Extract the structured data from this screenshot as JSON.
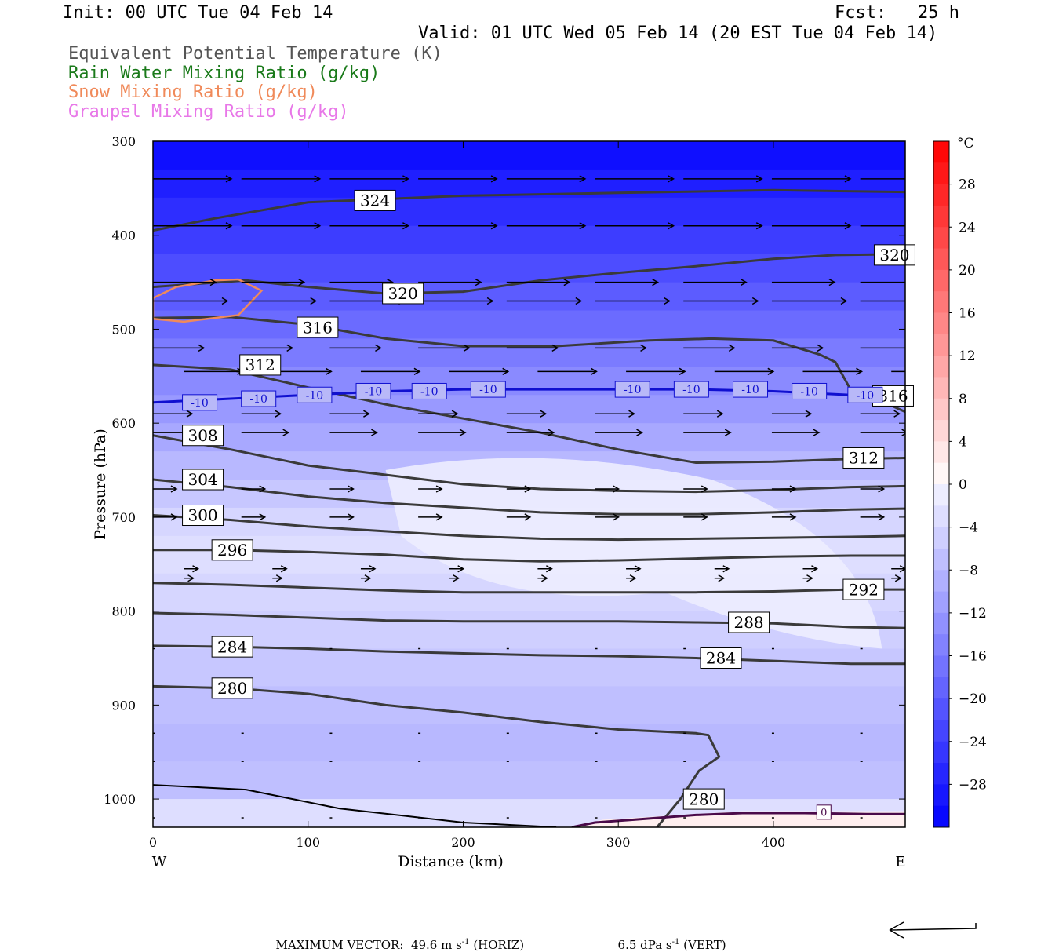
{
  "header": {
    "init": "Init: 00 UTC Tue 04 Feb 14",
    "fcst": "Fcst:   25 h",
    "valid": "Valid: 01 UTC Wed 05 Feb 14 (20 EST Tue 04 Feb 14)",
    "legend": [
      {
        "text": "Equivalent Potential Temperature (K)",
        "color": "#555555"
      },
      {
        "text": "Rain Water Mixing Ratio (g/kg)",
        "color": "#1a7a1a"
      },
      {
        "text": "Snow Mixing Ratio (g/kg)",
        "color": "#f08a5a"
      },
      {
        "text": "Graupel Mixing Ratio (g/kg)",
        "color": "#e878e8"
      }
    ]
  },
  "footer": {
    "max_vector_label": "MAXIMUM VECTOR:",
    "horiz": "49.6 m s",
    "horiz_unit": "(HORIZ)",
    "vert": "6.5 dPa s",
    "vert_unit": "(VERT)",
    "exp": "-1"
  },
  "chart_data": {
    "type": "contour",
    "xlabel": "Distance (km)",
    "ylabel": "Pressure (hPa)",
    "xlim": [
      0,
      485
    ],
    "ylim": [
      1030,
      300
    ],
    "x_ticks": [
      0,
      100,
      200,
      300,
      400
    ],
    "y_ticks": [
      300,
      400,
      500,
      600,
      700,
      800,
      900,
      1000
    ],
    "x_end_labels": {
      "left": "W",
      "right": "E"
    },
    "colorbar": {
      "unit": "°C",
      "ticks": [
        28,
        24,
        20,
        16,
        12,
        8,
        4,
        0,
        -4,
        -8,
        -12,
        -16,
        -20,
        -24,
        -28
      ],
      "range": [
        -32,
        32
      ]
    },
    "theta_e_contours": [
      {
        "label": "324",
        "points": [
          [
            0,
            395
          ],
          [
            40,
            382
          ],
          [
            100,
            365
          ],
          [
            200,
            358
          ],
          [
            300,
            355
          ],
          [
            400,
            352
          ],
          [
            485,
            354
          ]
        ],
        "label_at": [
          130,
          363
        ]
      },
      {
        "label": "320",
        "points": [
          [
            0,
            455
          ],
          [
            60,
            448
          ],
          [
            100,
            455
          ],
          [
            150,
            462
          ],
          [
            200,
            460
          ],
          [
            250,
            448
          ],
          [
            300,
            440
          ],
          [
            350,
            433
          ],
          [
            400,
            425
          ],
          [
            440,
            421
          ],
          [
            485,
            420
          ]
        ],
        "label_at": [
          148,
          462
        ]
      },
      {
        "label": "320",
        "points": [],
        "label_at": [
          465,
          421
        ]
      },
      {
        "label": "316",
        "points": [
          [
            0,
            488
          ],
          [
            50,
            487
          ],
          [
            100,
            495
          ],
          [
            150,
            510
          ],
          [
            200,
            518
          ],
          [
            260,
            518
          ],
          [
            320,
            512
          ],
          [
            360,
            510
          ],
          [
            400,
            512
          ],
          [
            430,
            527
          ],
          [
            440,
            535
          ],
          [
            450,
            565
          ],
          [
            465,
            573
          ],
          [
            485,
            588
          ]
        ],
        "label_at": [
          93,
          498
        ]
      },
      {
        "label": "316",
        "points": [],
        "label_at": [
          464,
          571
        ]
      },
      {
        "label": "312",
        "points": [
          [
            0,
            538
          ],
          [
            50,
            543
          ],
          [
            100,
            562
          ],
          [
            150,
            580
          ],
          [
            200,
            595
          ],
          [
            250,
            610
          ],
          [
            300,
            628
          ],
          [
            350,
            642
          ],
          [
            400,
            641
          ],
          [
            450,
            638
          ],
          [
            485,
            637
          ]
        ],
        "label_at": [
          56,
          538
        ]
      },
      {
        "label": "312",
        "points": [],
        "label_at": [
          445,
          637
        ]
      },
      {
        "label": "308",
        "points": [
          [
            0,
            613
          ],
          [
            50,
            628
          ],
          [
            100,
            645
          ],
          [
            150,
            655
          ],
          [
            200,
            665
          ],
          [
            250,
            670
          ],
          [
            300,
            672
          ],
          [
            350,
            673
          ],
          [
            400,
            671
          ],
          [
            450,
            668
          ],
          [
            485,
            667
          ]
        ],
        "label_at": [
          19,
          613
        ]
      },
      {
        "label": "304",
        "points": [
          [
            0,
            660
          ],
          [
            50,
            668
          ],
          [
            100,
            678
          ],
          [
            150,
            685
          ],
          [
            200,
            690
          ],
          [
            250,
            695
          ],
          [
            300,
            697
          ],
          [
            350,
            697
          ],
          [
            400,
            695
          ],
          [
            450,
            692
          ],
          [
            485,
            691
          ]
        ],
        "label_at": [
          19,
          660
        ]
      },
      {
        "label": "300",
        "points": [
          [
            0,
            698
          ],
          [
            50,
            703
          ],
          [
            100,
            710
          ],
          [
            150,
            715
          ],
          [
            200,
            720
          ],
          [
            250,
            723
          ],
          [
            300,
            724
          ],
          [
            350,
            723
          ],
          [
            400,
            722
          ],
          [
            450,
            721
          ],
          [
            485,
            720
          ]
        ],
        "label_at": [
          19,
          698
        ]
      },
      {
        "label": "296",
        "points": [
          [
            0,
            735
          ],
          [
            50,
            735
          ],
          [
            100,
            737
          ],
          [
            150,
            740
          ],
          [
            200,
            745
          ],
          [
            250,
            747
          ],
          [
            300,
            746
          ],
          [
            350,
            744
          ],
          [
            400,
            742
          ],
          [
            450,
            741
          ],
          [
            485,
            741
          ]
        ],
        "label_at": [
          38,
          735
        ]
      },
      {
        "label": "292",
        "points": [
          [
            0,
            770
          ],
          [
            50,
            772
          ],
          [
            100,
            775
          ],
          [
            150,
            778
          ],
          [
            200,
            780
          ],
          [
            250,
            780
          ],
          [
            300,
            780
          ],
          [
            350,
            780
          ],
          [
            400,
            779
          ],
          [
            450,
            777
          ],
          [
            485,
            777
          ]
        ],
        "label_at": [
          445,
          777
        ]
      },
      {
        "label": "288",
        "points": [
          [
            0,
            802
          ],
          [
            50,
            804
          ],
          [
            100,
            807
          ],
          [
            150,
            810
          ],
          [
            200,
            811
          ],
          [
            250,
            811
          ],
          [
            300,
            811
          ],
          [
            350,
            812
          ],
          [
            400,
            813
          ],
          [
            450,
            817
          ],
          [
            485,
            818
          ]
        ],
        "label_at": [
          371,
          812
        ]
      },
      {
        "label": "284",
        "points": [
          [
            0,
            837
          ],
          [
            50,
            838
          ],
          [
            100,
            840
          ],
          [
            150,
            843
          ],
          [
            200,
            845
          ],
          [
            250,
            847
          ],
          [
            300,
            848
          ],
          [
            350,
            850
          ],
          [
            400,
            853
          ],
          [
            450,
            856
          ],
          [
            485,
            856
          ]
        ],
        "label_at": [
          353,
          850
        ]
      },
      {
        "label": "284",
        "points": [],
        "label_at": [
          38,
          838
        ]
      },
      {
        "label": "280",
        "points": [
          [
            0,
            880
          ],
          [
            50,
            882
          ],
          [
            100,
            888
          ],
          [
            150,
            900
          ],
          [
            200,
            908
          ],
          [
            250,
            918
          ],
          [
            300,
            926
          ],
          [
            350,
            930
          ],
          [
            358,
            932
          ],
          [
            365,
            955
          ],
          [
            352,
            970
          ],
          [
            340,
            1000
          ],
          [
            330,
            1020
          ],
          [
            325,
            1030
          ]
        ],
        "label_at": [
          38,
          882
        ]
      },
      {
        "label": "280",
        "points": [],
        "label_at": [
          342,
          1000
        ]
      }
    ],
    "rain_contour_0": {
      "label": "0",
      "points": [
        [
          270,
          1030
        ],
        [
          285,
          1025
        ],
        [
          310,
          1022
        ],
        [
          350,
          1017
        ],
        [
          380,
          1015
        ],
        [
          420,
          1015
        ],
        [
          460,
          1016
        ],
        [
          485,
          1016
        ]
      ],
      "label_at": [
        428,
        1014
      ]
    },
    "freezing_isotherm": {
      "label": "-10",
      "points": [
        [
          0,
          578
        ],
        [
          50,
          574
        ],
        [
          100,
          570
        ],
        [
          150,
          566
        ],
        [
          200,
          564
        ],
        [
          250,
          564
        ],
        [
          300,
          564
        ],
        [
          350,
          564
        ],
        [
          400,
          566
        ],
        [
          450,
          570
        ],
        [
          485,
          572
        ]
      ],
      "label_positions": [
        19,
        57,
        93,
        131,
        167,
        205,
        298,
        336,
        374,
        412,
        448
      ]
    },
    "surface_boundary": {
      "points": [
        [
          0,
          985
        ],
        [
          60,
          990
        ],
        [
          120,
          1010
        ],
        [
          200,
          1025
        ],
        [
          260,
          1030
        ]
      ]
    },
    "snow_region": {
      "points": [
        [
          0,
          467
        ],
        [
          15,
          455
        ],
        [
          40,
          448
        ],
        [
          55,
          447
        ],
        [
          70,
          459
        ],
        [
          55,
          485
        ],
        [
          20,
          492
        ],
        [
          0,
          489
        ]
      ]
    }
  }
}
